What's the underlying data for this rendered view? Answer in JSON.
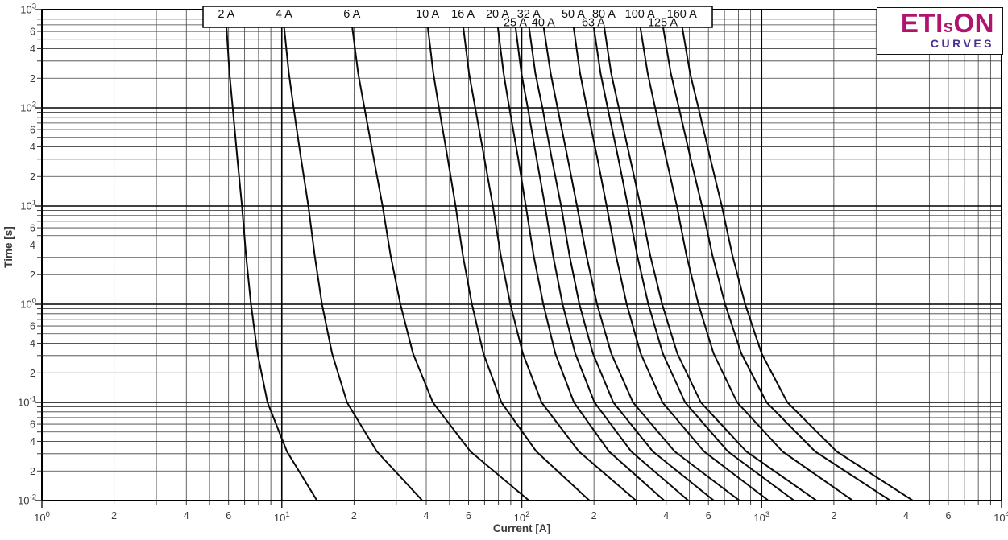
{
  "colors": {
    "background": "#ffffff",
    "curve": "#0a0a0a",
    "grid_minor": "#3f3f3f",
    "grid_major": "#000000",
    "axis_text": "#3a3a3a",
    "label_text": "#111111",
    "logo_brand": "#b1146f",
    "logo_tagline": "#4a3190"
  },
  "logo": {
    "text_eti": "ETI",
    "text_s": "s",
    "text_on": "ON",
    "tagline": "CURVES"
  },
  "chart_data": {
    "type": "line",
    "title": "",
    "xlabel": "Current [A]",
    "ylabel": "Time [s]",
    "xscale": "log",
    "yscale": "log",
    "xlim": [
      1,
      10000
    ],
    "ylim": [
      0.01,
      1000
    ],
    "grid": "log major and minor gridlines, both axes",
    "legend_position": "label box centered above curves at top of plot",
    "x_axis": {
      "min_exp": 0,
      "max_exp": 4,
      "labeled_minors": [
        2,
        4,
        6
      ]
    },
    "y_axis": {
      "min_exp": -2,
      "max_exp": 3,
      "labeled_minors": [
        2,
        4,
        6
      ]
    },
    "times_s": [
      700,
      225,
      100,
      31.6,
      10,
      3.16,
      1,
      0.316,
      0.1,
      0.0316,
      0.0095
    ],
    "series": [
      {
        "name": "2 A",
        "label_row": 1,
        "currents_A": [
          5.87,
          6.05,
          6.24,
          6.52,
          6.82,
          7.09,
          7.44,
          7.92,
          8.72,
          10.5,
          14.2
        ]
      },
      {
        "name": "4 A",
        "label_row": 1,
        "currents_A": [
          10.2,
          10.7,
          11.2,
          12.0,
          12.9,
          13.7,
          14.7,
          16.2,
          18.7,
          24.9,
          39.3
        ]
      },
      {
        "name": "6 A",
        "label_row": 1,
        "currents_A": [
          19.6,
          20.8,
          22.1,
          24.1,
          26.3,
          28.4,
          31.2,
          35.2,
          42.6,
          61.1,
          110
        ]
      },
      {
        "name": "10 A",
        "label_row": 1,
        "currents_A": [
          40.5,
          42.8,
          45.2,
          49.0,
          53.0,
          56.8,
          62.0,
          69.2,
          82.3,
          115,
          196
        ]
      },
      {
        "name": "16 A",
        "label_row": 1,
        "currents_A": [
          56.9,
          60.3,
          64.0,
          69.7,
          75.8,
          81.7,
          89.7,
          101,
          121,
          173,
          307
        ]
      },
      {
        "name": "20 A",
        "label_row": 1,
        "currents_A": [
          79.3,
          84.0,
          88.8,
          96.4,
          104,
          112,
          123,
          138,
          165,
          231,
          402
        ]
      },
      {
        "name": "25 A",
        "label_row": 2,
        "currents_A": [
          94.0,
          99.7,
          106,
          115,
          125,
          135,
          148,
          167,
          201,
          286,
          507
        ]
      },
      {
        "name": "32 A",
        "label_row": 1,
        "currents_A": [
          107,
          114,
          122,
          133,
          146,
          158,
          174,
          198,
          241,
          352,
          649
        ]
      },
      {
        "name": "40 A",
        "label_row": 2,
        "currents_A": [
          123,
          132,
          141,
          155,
          170,
          186,
          206,
          236,
          291,
          434,
          831
        ]
      },
      {
        "name": "50 A",
        "label_row": 1,
        "currents_A": [
          164,
          175,
          187,
          206,
          226,
          247,
          274,
          313,
          386,
          575,
          1097
        ]
      },
      {
        "name": "63 A",
        "label_row": 2,
        "currents_A": [
          199,
          213,
          228,
          252,
          277,
          303,
          337,
          387,
          480,
          723,
          1405
        ]
      },
      {
        "name": "80 A",
        "label_row": 1,
        "currents_A": [
          220,
          236,
          254,
          282,
          313,
          343,
          385,
          445,
          558,
          863,
          1744
        ]
      },
      {
        "name": "100 A",
        "label_row": 1,
        "currents_A": [
          311,
          335,
          360,
          399,
          443,
          486,
          545,
          630,
          791,
          1221,
          2470
        ]
      },
      {
        "name": "125 A",
        "label_row": 2,
        "currents_A": [
          387,
          418,
          452,
          504,
          564,
          623,
          704,
          822,
          1049,
          1670,
          3551
        ]
      },
      {
        "name": "160 A",
        "label_row": 1,
        "currents_A": [
          465,
          503,
          545,
          609,
          682,
          755,
          854,
          999,
          1280,
          2053,
          4409
        ]
      }
    ]
  }
}
